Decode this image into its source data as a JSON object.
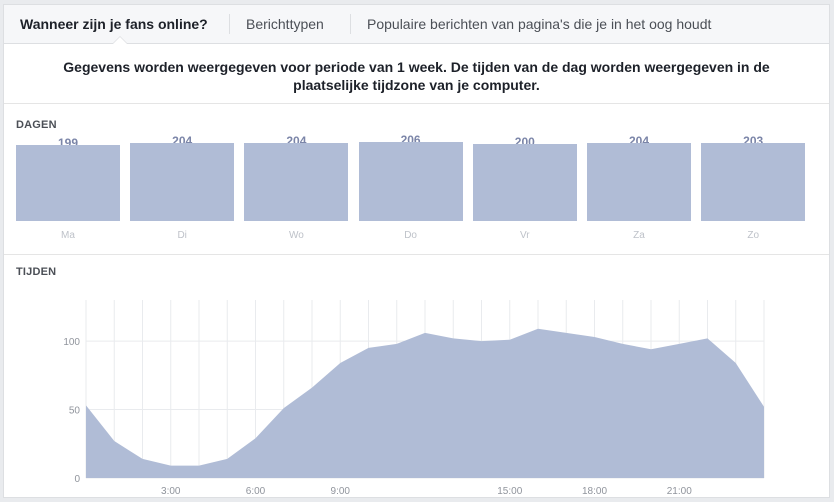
{
  "tabs": [
    {
      "label": "Wanneer zijn je fans online?",
      "active": true
    },
    {
      "label": "Berichttypen",
      "active": false
    },
    {
      "label": "Populaire berichten van pagina's die je in het oog houdt",
      "active": false
    }
  ],
  "notice": "Gegevens worden weergegeven voor periode van 1 week. De tijden van de dag worden weergegeven in de plaatselijke tijdzone van je computer.",
  "days_label": "DAGEN",
  "times_label": "TIJDEN",
  "colors": {
    "bar": "#b0bcd6",
    "value_text": "#7b85a8",
    "grid": "#e9ebee",
    "axis_text": "#90949c"
  },
  "chart_data": [
    {
      "type": "bar",
      "title": "DAGEN",
      "categories": [
        "Ma",
        "Di",
        "Wo",
        "Do",
        "Vr",
        "Za",
        "Zo"
      ],
      "values": [
        199,
        204,
        204,
        206,
        200,
        204,
        203
      ],
      "value_labels": [
        "199",
        "204",
        "204",
        "206",
        "200",
        "204",
        "203"
      ],
      "ylim": [
        0,
        206
      ]
    },
    {
      "type": "area",
      "title": "TIJDEN",
      "x": [
        0,
        1,
        2,
        3,
        4,
        5,
        6,
        7,
        8,
        9,
        10,
        11,
        12,
        13,
        14,
        15,
        16,
        17,
        18,
        19,
        20,
        21,
        22,
        23,
        24
      ],
      "values": [
        53,
        27,
        14,
        9,
        9,
        14,
        29,
        51,
        66,
        84,
        95,
        98,
        106,
        102,
        100,
        101,
        109,
        106,
        103,
        98,
        94,
        98,
        102,
        84,
        52
      ],
      "xticks": [
        {
          "x": 3,
          "label": "3:00"
        },
        {
          "x": 6,
          "label": "6:00"
        },
        {
          "x": 9,
          "label": "9:00"
        },
        {
          "x": 15,
          "label": "15:00"
        },
        {
          "x": 18,
          "label": "18:00"
        },
        {
          "x": 21,
          "label": "21:00"
        }
      ],
      "yticks": [
        0,
        50,
        100
      ],
      "ylim": [
        0,
        130
      ],
      "grid": true
    }
  ]
}
